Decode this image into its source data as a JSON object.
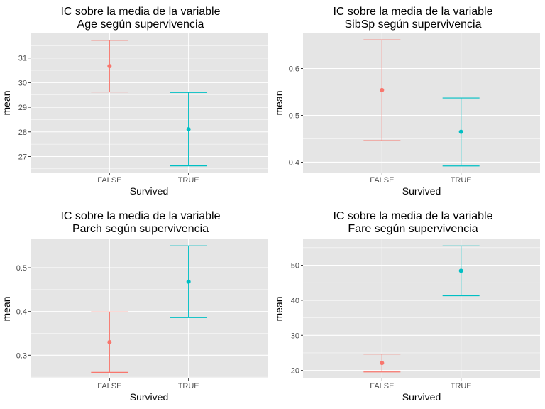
{
  "colors": {
    "panel_bg": "#e5e5e5",
    "grid_major": "#ffffff",
    "false_series": "#f8766d",
    "true_series": "#00bfc4"
  },
  "chart_data": [
    {
      "type": "errorbar",
      "title_line1": "IC sobre la media de la variable",
      "title_line2": "Age según supervivencia",
      "xlabel": "Survived",
      "ylabel": "mean",
      "categories": [
        "FALSE",
        "TRUE"
      ],
      "y_ticks": [
        27,
        28,
        29,
        30,
        31
      ],
      "ylim": [
        26.35,
        32.0
      ],
      "points": [
        {
          "category": "FALSE",
          "mean": 30.67,
          "lower": 29.62,
          "upper": 31.72,
          "color": "#f8766d"
        },
        {
          "category": "TRUE",
          "mean": 28.11,
          "lower": 26.62,
          "upper": 29.6,
          "color": "#00bfc4"
        }
      ]
    },
    {
      "type": "errorbar",
      "title_line1": "IC sobre la media de la variable",
      "title_line2": "SibSp según supervivencia",
      "xlabel": "Survived",
      "ylabel": "mean",
      "categories": [
        "FALSE",
        "TRUE"
      ],
      "y_ticks": [
        0.4,
        0.5,
        0.6
      ],
      "ylim": [
        0.378,
        0.675
      ],
      "points": [
        {
          "category": "FALSE",
          "mean": 0.554,
          "lower": 0.446,
          "upper": 0.661,
          "color": "#f8766d"
        },
        {
          "category": "TRUE",
          "mean": 0.465,
          "lower": 0.392,
          "upper": 0.537,
          "color": "#00bfc4"
        }
      ]
    },
    {
      "type": "errorbar",
      "title_line1": "IC sobre la media de la variable",
      "title_line2": "Parch según supervivencia",
      "xlabel": "Survived",
      "ylabel": "mean",
      "categories": [
        "FALSE",
        "TRUE"
      ],
      "y_ticks": [
        0.3,
        0.4,
        0.5
      ],
      "ylim": [
        0.247,
        0.565
      ],
      "points": [
        {
          "category": "FALSE",
          "mean": 0.33,
          "lower": 0.261,
          "upper": 0.399,
          "color": "#f8766d"
        },
        {
          "category": "TRUE",
          "mean": 0.468,
          "lower": 0.386,
          "upper": 0.55,
          "color": "#00bfc4"
        }
      ]
    },
    {
      "type": "errorbar",
      "title_line1": "IC sobre la media de la variable",
      "title_line2": "Fare según supervivencia",
      "xlabel": "Survived",
      "ylabel": "mean",
      "categories": [
        "FALSE",
        "TRUE"
      ],
      "y_ticks": [
        20,
        30,
        40,
        50
      ],
      "ylim": [
        17.7,
        57.4
      ],
      "points": [
        {
          "category": "FALSE",
          "mean": 22.12,
          "lower": 19.58,
          "upper": 24.66,
          "color": "#f8766d"
        },
        {
          "category": "TRUE",
          "mean": 48.4,
          "lower": 41.29,
          "upper": 55.5,
          "color": "#00bfc4"
        }
      ]
    }
  ]
}
